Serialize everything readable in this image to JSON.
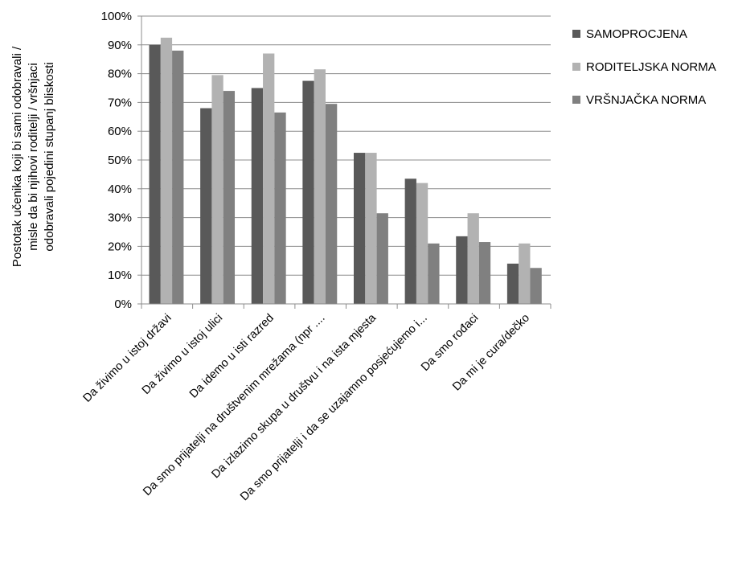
{
  "chart_data": {
    "type": "bar",
    "title": "",
    "ylabel": [
      "Postotak učenika koji bi sami odobravali /",
      "misle da bi njihovi roditelji / vršnjaci",
      "odobravali pojedini stupanj bliskosti"
    ],
    "xlabel": "",
    "ylim": [
      0,
      1
    ],
    "y_ticks": [
      "0%",
      "10%",
      "20%",
      "30%",
      "40%",
      "50%",
      "60%",
      "70%",
      "80%",
      "90%",
      "100%"
    ],
    "grid": true,
    "legend_position": "right",
    "categories": [
      "Da živimo u istoj državi",
      "Da živimo u istoj ulici",
      "Da idemo u isti razred",
      "Da smo prijatelji na društvenim mrežama (npr ....",
      "Da izlazimo skupa u društvu i na ista mjesta",
      "Da smo prijatelji i da se uzajamno posjećujemo i...",
      "Da smo rođaci",
      "Da mi je cura/dečko"
    ],
    "series": [
      {
        "name": "SAMOPROCJENA",
        "color": "#595959",
        "values": [
          0.9,
          0.68,
          0.75,
          0.775,
          0.525,
          0.435,
          0.235,
          0.14
        ]
      },
      {
        "name": "RODITELJSKA NORMA",
        "color": "#b2b2b2",
        "values": [
          0.925,
          0.795,
          0.87,
          0.815,
          0.525,
          0.42,
          0.315,
          0.21
        ]
      },
      {
        "name": "VRŠNJAČKA NORMA",
        "color": "#808080",
        "values": [
          0.88,
          0.74,
          0.665,
          0.695,
          0.315,
          0.21,
          0.215,
          0.125
        ]
      }
    ]
  }
}
